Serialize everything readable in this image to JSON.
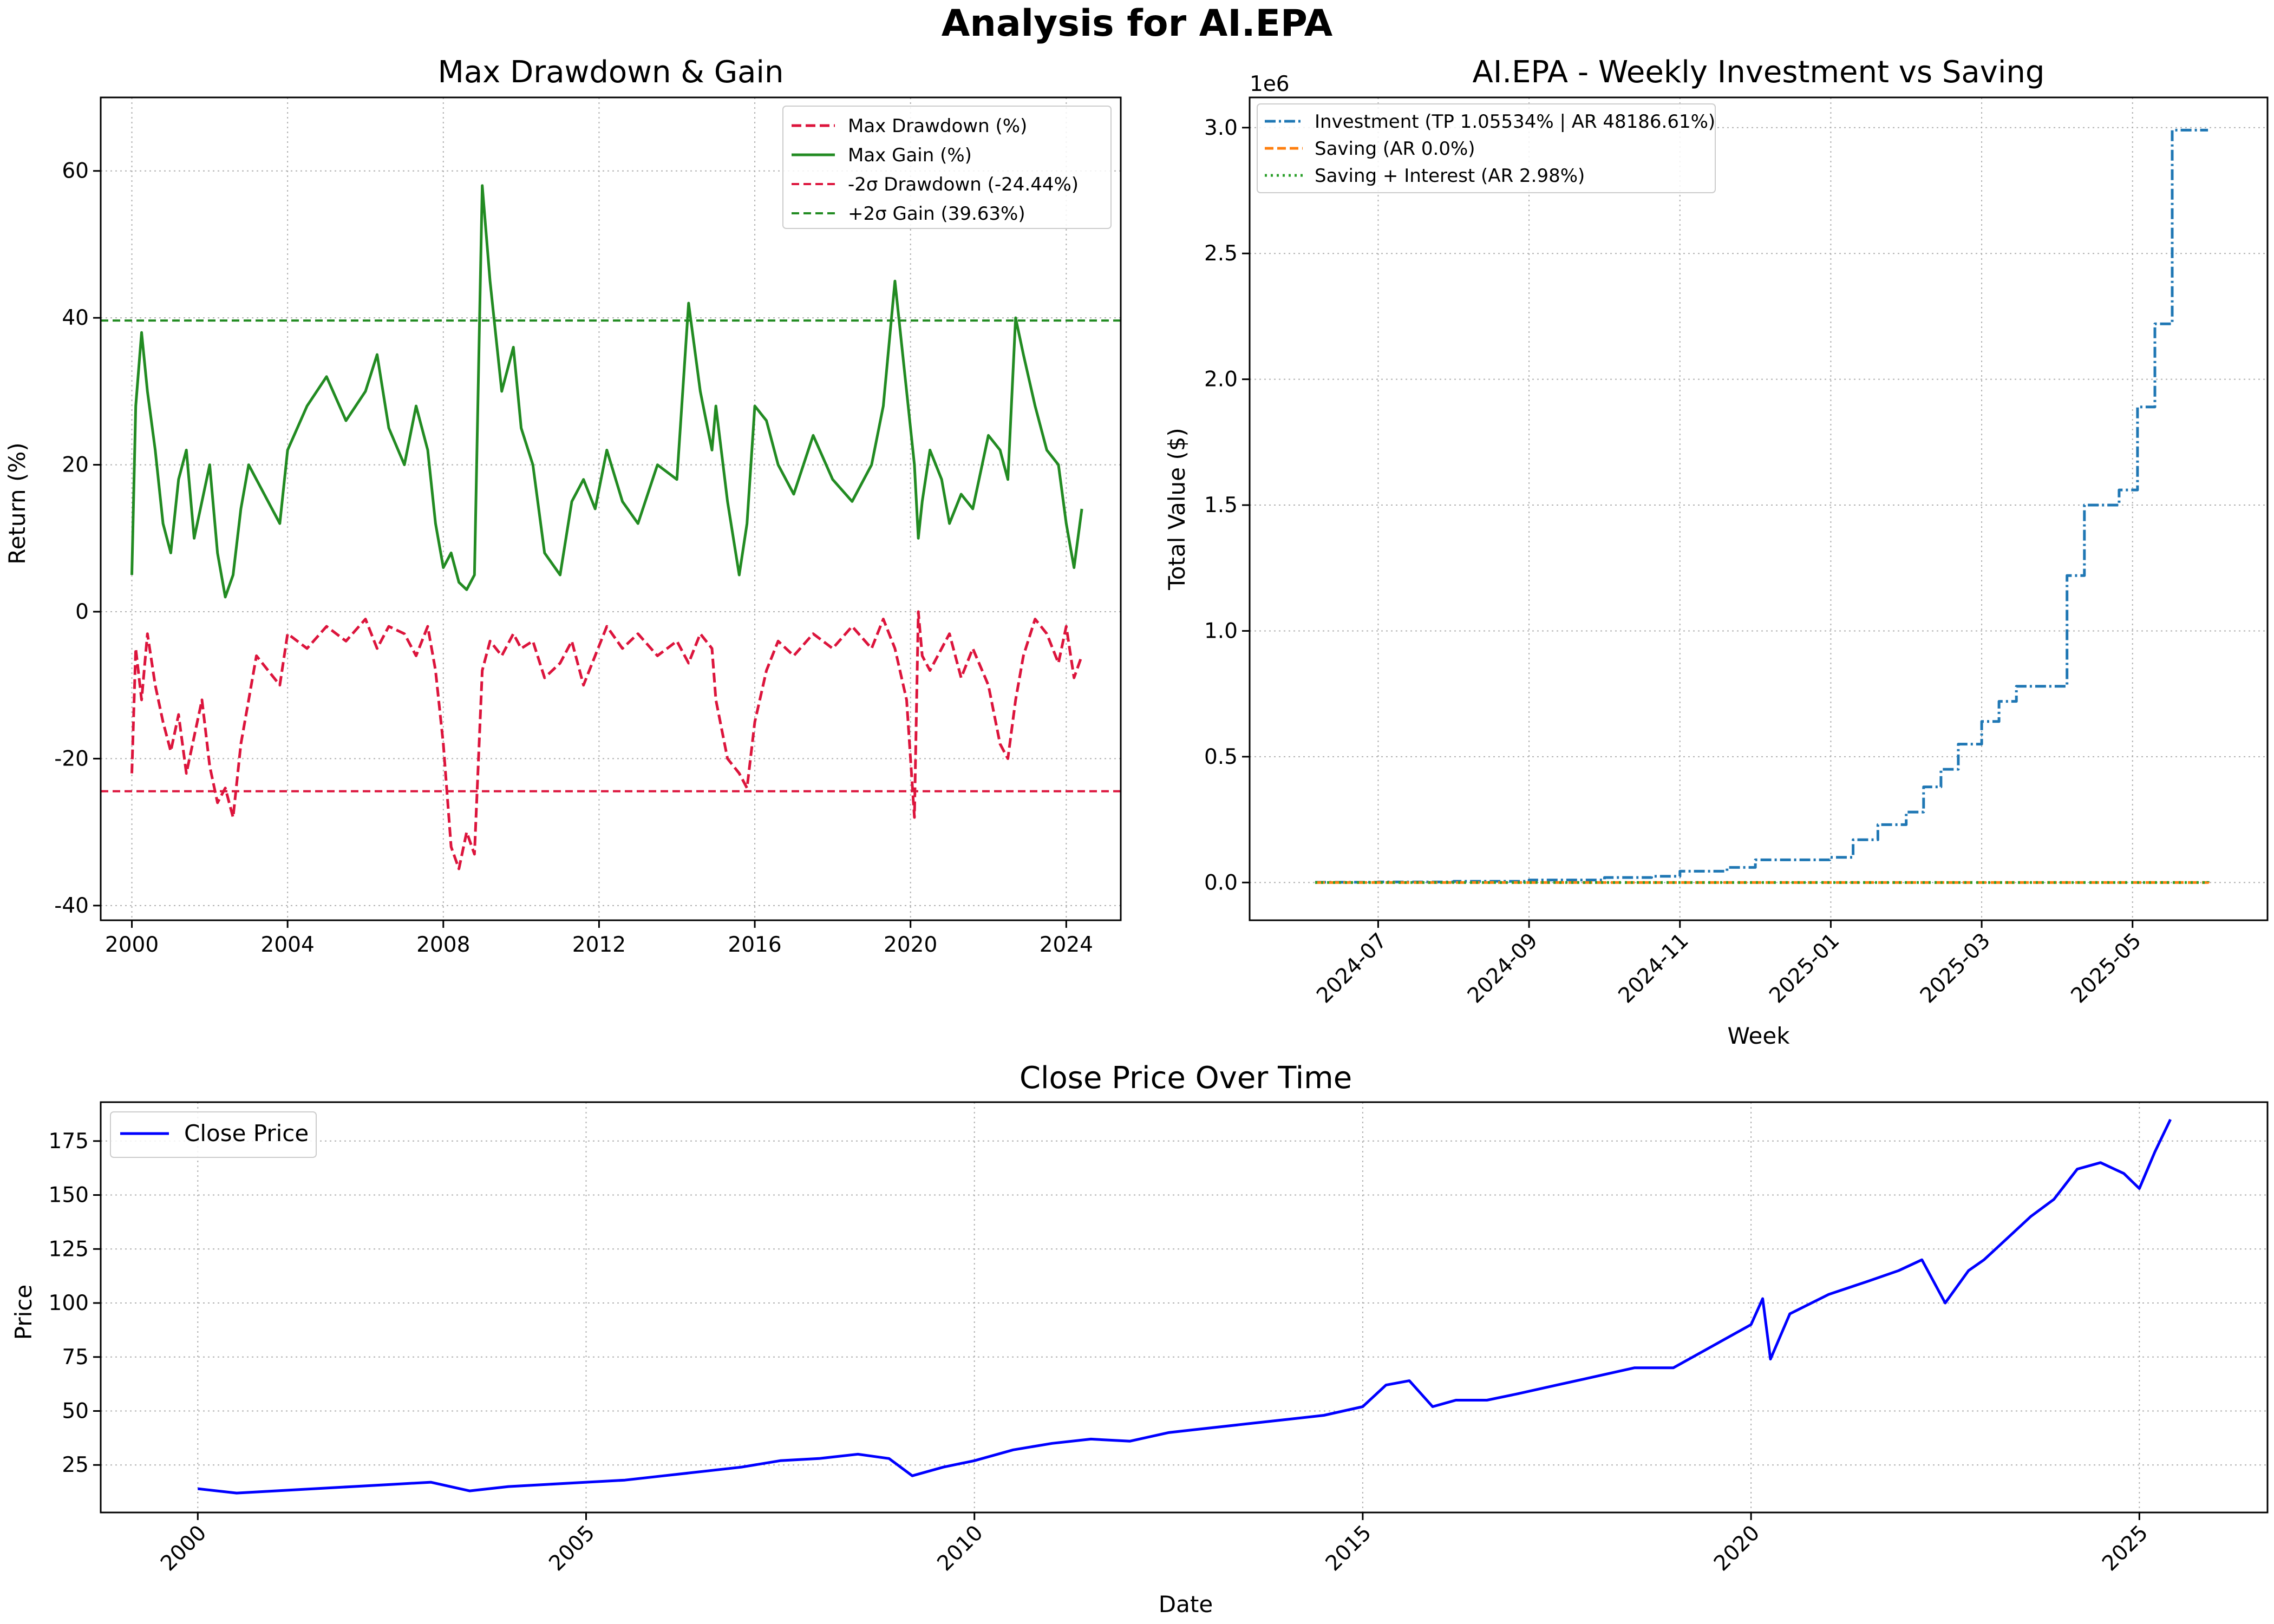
{
  "suptitle": "Analysis for AI.EPA",
  "chart_data": [
    {
      "type": "line",
      "title": "Max Drawdown & Gain",
      "xlabel": "",
      "ylabel": "Return (%)",
      "xlim": [
        1999.2,
        2025.4
      ],
      "ylim": [
        -42,
        70
      ],
      "x_ticks": [
        2000,
        2004,
        2008,
        2012,
        2016,
        2020,
        2024
      ],
      "y_ticks": [
        -40,
        -20,
        0,
        20,
        40,
        60
      ],
      "grid": true,
      "legend_position": "top-right",
      "hlines": [
        {
          "name": "-2σ Drawdown (-24.44%)",
          "value": -24.44,
          "color": "#dc143c",
          "style": "dashed"
        },
        {
          "name": "+2σ Gain (39.63%)",
          "value": 39.63,
          "color": "#228b22",
          "style": "dashed"
        }
      ],
      "series": [
        {
          "name": "Max Drawdown (%)",
          "color": "#dc143c",
          "style": "dashed",
          "x": [
            2000.0,
            2000.1,
            2000.25,
            2000.4,
            2000.6,
            2000.8,
            2001.0,
            2001.2,
            2001.4,
            2001.6,
            2001.8,
            2002.0,
            2002.2,
            2002.4,
            2002.6,
            2002.8,
            2003.0,
            2003.2,
            2003.5,
            2003.8,
            2004.0,
            2004.5,
            2005.0,
            2005.5,
            2006.0,
            2006.3,
            2006.6,
            2007.0,
            2007.3,
            2007.6,
            2007.8,
            2008.0,
            2008.2,
            2008.4,
            2008.6,
            2008.8,
            2009.0,
            2009.2,
            2009.5,
            2009.8,
            2010.0,
            2010.3,
            2010.6,
            2011.0,
            2011.3,
            2011.6,
            2011.9,
            2012.2,
            2012.6,
            2013.0,
            2013.5,
            2014.0,
            2014.3,
            2014.6,
            2014.9,
            2015.0,
            2015.3,
            2015.6,
            2015.8,
            2016.0,
            2016.3,
            2016.6,
            2017.0,
            2017.5,
            2018.0,
            2018.5,
            2019.0,
            2019.3,
            2019.6,
            2019.9,
            2020.1,
            2020.2,
            2020.3,
            2020.5,
            2020.8,
            2021.0,
            2021.3,
            2021.6,
            2022.0,
            2022.3,
            2022.5,
            2022.7,
            2022.9,
            2023.2,
            2023.5,
            2023.8,
            2024.0,
            2024.2,
            2024.4
          ],
          "y": [
            -22,
            -5,
            -12,
            -3,
            -10,
            -15,
            -19,
            -14,
            -22,
            -17,
            -12,
            -21,
            -26,
            -24,
            -28,
            -18,
            -12,
            -6,
            -8,
            -10,
            -3,
            -5,
            -2,
            -4,
            -1,
            -5,
            -2,
            -3,
            -6,
            -2,
            -8,
            -18,
            -32,
            -35,
            -30,
            -33,
            -8,
            -4,
            -6,
            -3,
            -5,
            -4,
            -9,
            -7,
            -4,
            -10,
            -6,
            -2,
            -5,
            -3,
            -6,
            -4,
            -7,
            -3,
            -5,
            -12,
            -20,
            -22,
            -24,
            -15,
            -8,
            -4,
            -6,
            -3,
            -5,
            -2,
            -5,
            -1,
            -5,
            -12,
            -28,
            0,
            -6,
            -8,
            -5,
            -3,
            -9,
            -5,
            -10,
            -18,
            -20,
            -12,
            -6,
            -1,
            -3,
            -7,
            -2,
            -9,
            -6
          ]
        },
        {
          "name": "Max Gain (%)",
          "color": "#228b22",
          "style": "solid",
          "x": [
            2000.0,
            2000.1,
            2000.25,
            2000.4,
            2000.6,
            2000.8,
            2001.0,
            2001.2,
            2001.4,
            2001.6,
            2001.8,
            2002.0,
            2002.2,
            2002.4,
            2002.6,
            2002.8,
            2003.0,
            2003.2,
            2003.5,
            2003.8,
            2004.0,
            2004.5,
            2005.0,
            2005.5,
            2006.0,
            2006.3,
            2006.6,
            2007.0,
            2007.3,
            2007.6,
            2007.8,
            2008.0,
            2008.2,
            2008.4,
            2008.6,
            2008.8,
            2009.0,
            2009.2,
            2009.5,
            2009.8,
            2010.0,
            2010.3,
            2010.6,
            2011.0,
            2011.3,
            2011.6,
            2011.9,
            2012.2,
            2012.6,
            2013.0,
            2013.5,
            2014.0,
            2014.3,
            2014.6,
            2014.9,
            2015.0,
            2015.3,
            2015.6,
            2015.8,
            2016.0,
            2016.3,
            2016.6,
            2017.0,
            2017.5,
            2018.0,
            2018.5,
            2019.0,
            2019.3,
            2019.6,
            2019.9,
            2020.1,
            2020.2,
            2020.3,
            2020.5,
            2020.8,
            2021.0,
            2021.3,
            2021.6,
            2022.0,
            2022.3,
            2022.5,
            2022.7,
            2022.9,
            2023.2,
            2023.5,
            2023.8,
            2024.0,
            2024.2,
            2024.4
          ],
          "y": [
            5,
            28,
            38,
            30,
            22,
            12,
            8,
            18,
            22,
            10,
            15,
            20,
            8,
            2,
            5,
            14,
            20,
            18,
            15,
            12,
            22,
            28,
            32,
            26,
            30,
            35,
            25,
            20,
            28,
            22,
            12,
            6,
            8,
            4,
            3,
            5,
            58,
            45,
            30,
            36,
            25,
            20,
            8,
            5,
            15,
            18,
            14,
            22,
            15,
            12,
            20,
            18,
            42,
            30,
            22,
            28,
            15,
            5,
            12,
            28,
            26,
            20,
            16,
            24,
            18,
            15,
            20,
            28,
            45,
            30,
            20,
            10,
            15,
            22,
            18,
            12,
            16,
            14,
            24,
            22,
            18,
            40,
            35,
            28,
            22,
            20,
            12,
            6,
            14
          ]
        }
      ]
    },
    {
      "type": "line",
      "title": "AI.EPA - Weekly Investment vs Saving",
      "xlabel": "Week",
      "ylabel": "Total Value ($)",
      "y_scale_label": "1e6",
      "x_ticks": [
        "2024-07",
        "2024-09",
        "2024-11",
        "2025-01",
        "2025-03",
        "2025-05"
      ],
      "y_ticks": [
        0.0,
        0.5,
        1.0,
        1.5,
        2.0,
        2.5,
        3.0
      ],
      "ylim": [
        -0.15,
        3.12
      ],
      "grid": true,
      "legend_position": "top-left",
      "series": [
        {
          "name": "Investment (TP 1.05534% | AR 48186.61%)",
          "color": "#1f77b4",
          "style": "dashdot",
          "x": [
            "2024-06-06",
            "2024-07-01",
            "2024-08-01",
            "2024-09-01",
            "2024-10-01",
            "2024-10-20",
            "2024-11-01",
            "2024-11-20",
            "2024-12-01",
            "2024-12-31",
            "2025-01-10",
            "2025-01-20",
            "2025-02-01",
            "2025-02-08",
            "2025-02-15",
            "2025-02-22",
            "2025-03-01",
            "2025-03-08",
            "2025-03-15",
            "2025-03-29",
            "2025-04-05",
            "2025-04-12",
            "2025-04-26",
            "2025-05-03",
            "2025-05-10",
            "2025-05-17",
            "2025-06-01"
          ],
          "y": [
            0.001,
            0.002,
            0.005,
            0.01,
            0.02,
            0.025,
            0.045,
            0.06,
            0.09,
            0.1,
            0.17,
            0.23,
            0.28,
            0.38,
            0.45,
            0.55,
            0.64,
            0.72,
            0.78,
            0.78,
            1.22,
            1.5,
            1.56,
            1.89,
            2.22,
            2.99,
            2.99
          ]
        },
        {
          "name": "Saving (AR 0.0%)",
          "color": "#ff7f0e",
          "style": "dashed",
          "x": [
            "2024-06-06",
            "2025-06-01"
          ],
          "y": [
            0.0001,
            0.0052
          ]
        },
        {
          "name": "Saving + Interest (AR 2.98%)",
          "color": "#2ca02c",
          "style": "dotted",
          "x": [
            "2024-06-06",
            "2025-06-01"
          ],
          "y": [
            0.0001,
            0.0053
          ]
        }
      ]
    },
    {
      "type": "line",
      "title": "Close Price Over Time",
      "xlabel": "Date",
      "ylabel": "Price",
      "xlim": [
        1998.75,
        2026.65
      ],
      "ylim": [
        3,
        193
      ],
      "x_ticks": [
        2000,
        2005,
        2010,
        2015,
        2020,
        2025
      ],
      "y_ticks": [
        25,
        50,
        75,
        100,
        125,
        150,
        175
      ],
      "grid": true,
      "legend_position": "top-left",
      "series": [
        {
          "name": "Close Price",
          "color": "#0000ff",
          "style": "solid",
          "x": [
            2000.0,
            2000.5,
            2001.0,
            2001.5,
            2002.0,
            2002.5,
            2003.0,
            2003.5,
            2004.0,
            2004.5,
            2005.0,
            2005.5,
            2006.0,
            2006.5,
            2007.0,
            2007.5,
            2008.0,
            2008.5,
            2008.9,
            2009.2,
            2009.6,
            2010.0,
            2010.5,
            2011.0,
            2011.5,
            2012.0,
            2012.5,
            2013.0,
            2013.5,
            2014.0,
            2014.5,
            2015.0,
            2015.3,
            2015.6,
            2015.9,
            2016.2,
            2016.6,
            2017.0,
            2017.5,
            2018.0,
            2018.5,
            2019.0,
            2019.5,
            2020.0,
            2020.15,
            2020.25,
            2020.5,
            2021.0,
            2021.5,
            2021.9,
            2022.2,
            2022.5,
            2022.8,
            2023.0,
            2023.3,
            2023.6,
            2023.9,
            2024.2,
            2024.5,
            2024.8,
            2025.0,
            2025.2,
            2025.4
          ],
          "y": [
            14,
            12,
            13,
            14,
            15,
            16,
            17,
            13,
            15,
            16,
            17,
            18,
            20,
            22,
            24,
            27,
            28,
            30,
            28,
            20,
            24,
            27,
            32,
            35,
            37,
            36,
            40,
            42,
            44,
            46,
            48,
            52,
            62,
            64,
            52,
            55,
            55,
            58,
            62,
            66,
            70,
            70,
            80,
            90,
            102,
            74,
            95,
            104,
            110,
            115,
            120,
            100,
            115,
            120,
            130,
            140,
            148,
            162,
            165,
            160,
            153,
            170,
            185
          ]
        }
      ]
    }
  ]
}
